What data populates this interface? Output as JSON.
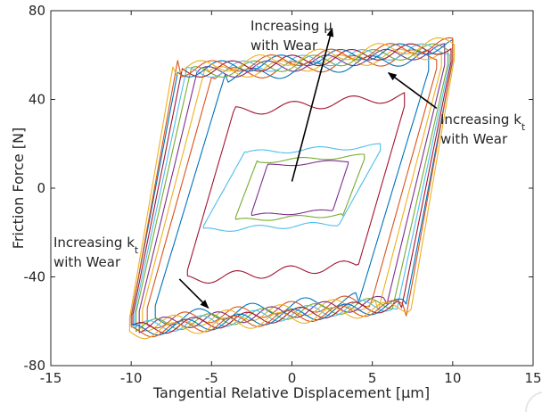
{
  "chart_data": {
    "type": "line",
    "title": "",
    "xlabel": "Tangential Relative Displacement [μm]",
    "ylabel": "Friction Force [N]",
    "xlim": [
      -15,
      15
    ],
    "ylim": [
      -80,
      80
    ],
    "xticks": [
      -15,
      -10,
      -5,
      0,
      5,
      10,
      15
    ],
    "yticks": [
      -80,
      -40,
      0,
      40,
      80
    ],
    "xtick_labels": [
      "-15",
      "-10",
      "-5",
      "0",
      "5",
      "10",
      "15"
    ],
    "ytick_labels": [
      "-80",
      "-40",
      "0",
      "40",
      "80"
    ],
    "grid": false,
    "legend": "none",
    "description_of_curves": "Nested hysteresis loops of friction force versus tangential displacement, one per wear stage",
    "series": [
      {
        "color": "#7e2f8e",
        "x_range": [
          -2.5,
          3.5
        ],
        "force_amplitude": 11,
        "kt_slope": 22
      },
      {
        "color": "#77ac30",
        "x_range": [
          -3.5,
          4.5
        ],
        "force_amplitude": 13,
        "kt_slope": 19
      },
      {
        "color": "#4dbeee",
        "x_range": [
          -5.5,
          5.5
        ],
        "force_amplitude": 17,
        "kt_slope": 13
      },
      {
        "color": "#a2142f",
        "x_range": [
          -6.5,
          7
        ],
        "force_amplitude": 37,
        "kt_slope": 25
      },
      {
        "color": "#0072bd",
        "x_range": [
          -8.5,
          8.5
        ],
        "force_amplitude": 53,
        "kt_slope": 24
      },
      {
        "color": "#d95319",
        "x_range": [
          -9,
          9
        ],
        "force_amplitude": 54,
        "kt_slope": 26
      },
      {
        "color": "#edb120",
        "x_range": [
          -9.3,
          9.3
        ],
        "force_amplitude": 55,
        "kt_slope": 28
      },
      {
        "color": "#7e2f8e",
        "x_range": [
          -9.5,
          9.5
        ],
        "force_amplitude": 55.5,
        "kt_slope": 30
      },
      {
        "color": "#77ac30",
        "x_range": [
          -9.7,
          9.7
        ],
        "force_amplitude": 56,
        "kt_slope": 32
      },
      {
        "color": "#4dbeee",
        "x_range": [
          -9.8,
          9.8
        ],
        "force_amplitude": 56.5,
        "kt_slope": 34
      },
      {
        "color": "#a2142f",
        "x_range": [
          -9.9,
          9.9
        ],
        "force_amplitude": 57,
        "kt_slope": 36
      },
      {
        "color": "#0072bd",
        "x_range": [
          -10,
          10
        ],
        "force_amplitude": 57.5,
        "kt_slope": 38
      },
      {
        "color": "#d95319",
        "x_range": [
          -10,
          10
        ],
        "force_amplitude": 58,
        "kt_slope": 40
      },
      {
        "color": "#edb120",
        "x_range": [
          -10.1,
          10.1
        ],
        "force_amplitude": 58.5,
        "kt_slope": 42
      }
    ],
    "annotations": [
      {
        "line1": "Increasing μ",
        "line2": "with Wear",
        "arrow_from": [
          0,
          3
        ],
        "arrow_to": [
          2.5,
          72
        ]
      },
      {
        "line1": "Increasing k",
        "sub": "t",
        "line2": "with Wear",
        "arrow_from": [
          9,
          36
        ],
        "arrow_to": [
          6,
          52
        ]
      },
      {
        "line1": "Increasing k",
        "sub": "t",
        "line2": "with Wear",
        "arrow_from": [
          -7,
          -41
        ],
        "arrow_to": [
          -5.2,
          -54
        ]
      }
    ]
  }
}
